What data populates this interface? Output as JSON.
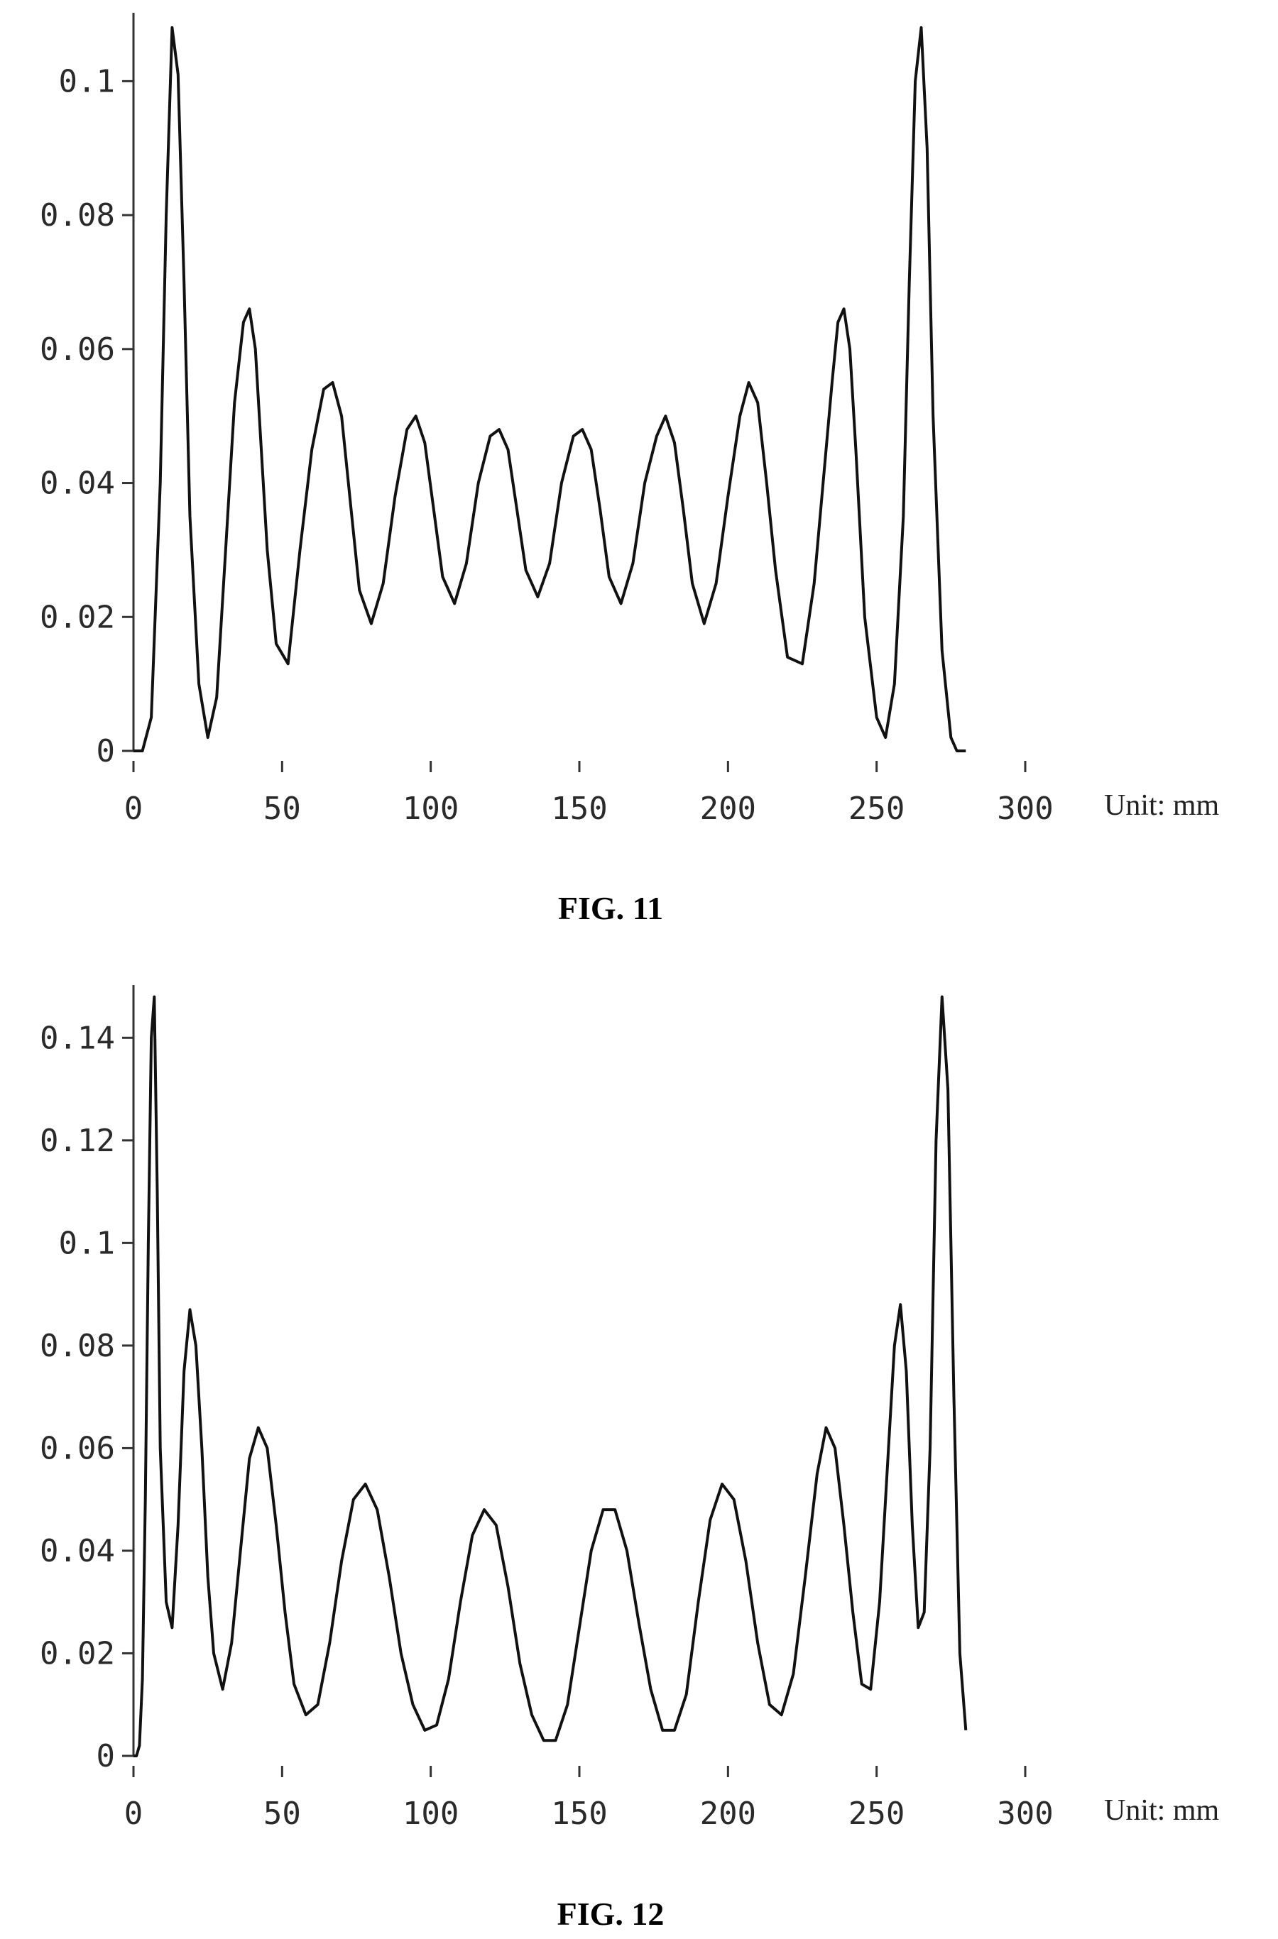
{
  "chart_data": [
    {
      "type": "line",
      "caption": "FIG. 11",
      "xlabel": "Unit: mm",
      "ylabel": "",
      "xlim": [
        0,
        300
      ],
      "ylim": [
        0,
        0.11
      ],
      "xticks": [
        "0",
        "50",
        "100",
        "150",
        "200",
        "250",
        "300"
      ],
      "yticks": [
        "0",
        "0.02",
        "0.04",
        "0.06",
        "0.08",
        "0.1"
      ],
      "grid": false,
      "series": [
        {
          "color": "#111111",
          "x": [
            0,
            3,
            6,
            9,
            11,
            13,
            15,
            17,
            19,
            22,
            25,
            28,
            31,
            34,
            37,
            39,
            41,
            43,
            45,
            48,
            52,
            56,
            60,
            64,
            67,
            70,
            73,
            76,
            80,
            84,
            88,
            92,
            95,
            98,
            101,
            104,
            108,
            112,
            116,
            120,
            123,
            126,
            129,
            132,
            136,
            140,
            144,
            148,
            151,
            154,
            157,
            160,
            164,
            168,
            172,
            176,
            179,
            182,
            185,
            188,
            192,
            196,
            200,
            204,
            207,
            210,
            213,
            216,
            220,
            225,
            229,
            232,
            235,
            237,
            239,
            241,
            243,
            246,
            250,
            253,
            256,
            259,
            261,
            263,
            265,
            267,
            269,
            272,
            275,
            277,
            280
          ],
          "y": [
            0,
            0,
            0.005,
            0.04,
            0.08,
            0.108,
            0.101,
            0.07,
            0.035,
            0.01,
            0.002,
            0.008,
            0.03,
            0.052,
            0.064,
            0.066,
            0.06,
            0.045,
            0.03,
            0.016,
            0.013,
            0.03,
            0.045,
            0.054,
            0.055,
            0.05,
            0.037,
            0.024,
            0.019,
            0.025,
            0.038,
            0.048,
            0.05,
            0.046,
            0.036,
            0.026,
            0.022,
            0.028,
            0.04,
            0.047,
            0.048,
            0.045,
            0.036,
            0.027,
            0.023,
            0.028,
            0.04,
            0.047,
            0.048,
            0.045,
            0.036,
            0.026,
            0.022,
            0.028,
            0.04,
            0.047,
            0.05,
            0.046,
            0.036,
            0.025,
            0.019,
            0.025,
            0.038,
            0.05,
            0.055,
            0.052,
            0.04,
            0.027,
            0.014,
            0.013,
            0.025,
            0.04,
            0.055,
            0.064,
            0.066,
            0.06,
            0.045,
            0.02,
            0.005,
            0.002,
            0.01,
            0.035,
            0.07,
            0.1,
            0.108,
            0.09,
            0.05,
            0.015,
            0.002,
            0,
            0
          ]
        }
      ]
    },
    {
      "type": "line",
      "caption": "FIG. 12",
      "xlabel": "Unit: mm",
      "ylabel": "",
      "xlim": [
        0,
        300
      ],
      "ylim": [
        0,
        0.15
      ],
      "xticks": [
        "0",
        "50",
        "100",
        "150",
        "200",
        "250",
        "300"
      ],
      "yticks": [
        "0",
        "0.02",
        "0.04",
        "0.06",
        "0.08",
        "0.1",
        "0.12",
        "0.14"
      ],
      "grid": false,
      "series": [
        {
          "color": "#111111",
          "x": [
            0,
            1,
            2,
            3,
            4,
            5,
            6,
            7,
            8,
            9,
            11,
            13,
            15,
            17,
            19,
            21,
            23,
            25,
            27,
            30,
            33,
            36,
            39,
            42,
            45,
            48,
            51,
            54,
            58,
            62,
            66,
            70,
            74,
            78,
            82,
            86,
            90,
            94,
            98,
            102,
            106,
            110,
            114,
            118,
            122,
            126,
            130,
            134,
            138,
            142,
            146,
            150,
            154,
            158,
            162,
            166,
            170,
            174,
            178,
            182,
            186,
            190,
            194,
            198,
            202,
            206,
            210,
            214,
            218,
            222,
            226,
            230,
            233,
            236,
            239,
            242,
            245,
            248,
            251,
            254,
            256,
            258,
            260,
            262,
            264,
            266,
            268,
            270,
            272,
            274,
            276,
            278,
            280
          ],
          "y": [
            0,
            0,
            0.002,
            0.015,
            0.05,
            0.1,
            0.14,
            0.148,
            0.11,
            0.06,
            0.03,
            0.025,
            0.045,
            0.075,
            0.087,
            0.08,
            0.06,
            0.035,
            0.02,
            0.013,
            0.022,
            0.04,
            0.058,
            0.064,
            0.06,
            0.045,
            0.028,
            0.014,
            0.008,
            0.01,
            0.022,
            0.038,
            0.05,
            0.053,
            0.048,
            0.035,
            0.02,
            0.01,
            0.005,
            0.006,
            0.015,
            0.03,
            0.043,
            0.048,
            0.045,
            0.033,
            0.018,
            0.008,
            0.003,
            0.003,
            0.01,
            0.025,
            0.04,
            0.048,
            0.048,
            0.04,
            0.026,
            0.013,
            0.005,
            0.005,
            0.012,
            0.03,
            0.046,
            0.053,
            0.05,
            0.038,
            0.022,
            0.01,
            0.008,
            0.016,
            0.035,
            0.055,
            0.064,
            0.06,
            0.045,
            0.028,
            0.014,
            0.013,
            0.03,
            0.06,
            0.08,
            0.088,
            0.075,
            0.045,
            0.025,
            0.028,
            0.06,
            0.12,
            0.148,
            0.13,
            0.07,
            0.02,
            0.005
          ]
        }
      ]
    }
  ]
}
